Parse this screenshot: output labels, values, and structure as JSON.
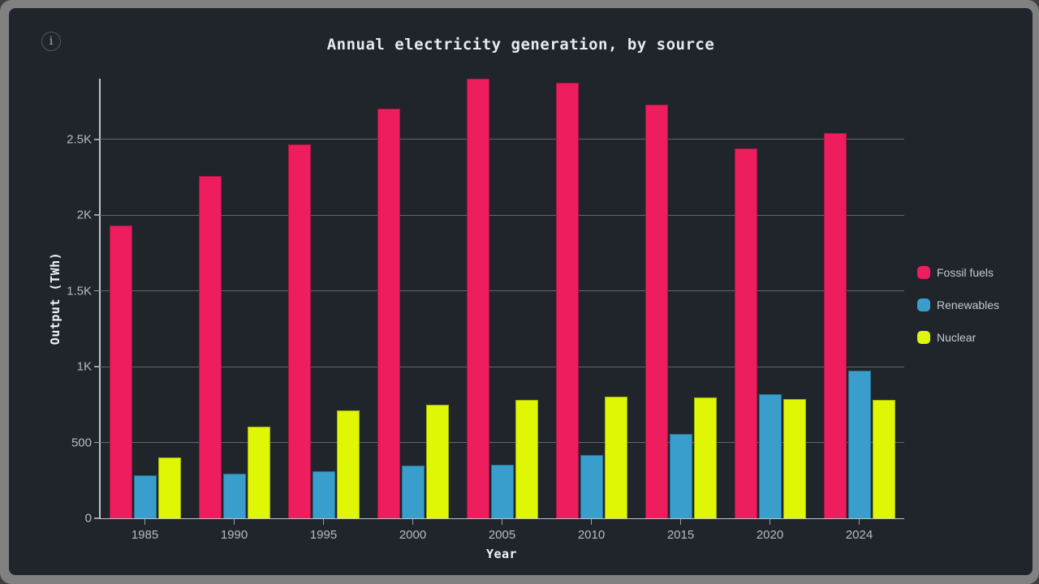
{
  "header": {
    "title": "Annual electricity generation, by source",
    "info_symbol": "i"
  },
  "chart_data": {
    "type": "bar",
    "title": "Annual electricity generation, by source",
    "xlabel": "Year",
    "ylabel": "Output (TWh)",
    "categories": [
      "1985",
      "1990",
      "1995",
      "2000",
      "2005",
      "2010",
      "2015",
      "2020",
      "2024"
    ],
    "series": [
      {
        "name": "Fossil fuels",
        "color": "#ee1e5e",
        "values": [
          1930,
          2260,
          2465,
          2700,
          2900,
          2875,
          2730,
          2440,
          2540
        ]
      },
      {
        "name": "Renewables",
        "color": "#3a9ecd",
        "values": [
          285,
          295,
          310,
          350,
          355,
          420,
          555,
          820,
          975
        ]
      },
      {
        "name": "Nuclear",
        "color": "#dff705",
        "values": [
          400,
          605,
          710,
          750,
          780,
          805,
          795,
          785,
          780
        ]
      }
    ],
    "ylim": [
      0,
      2900
    ],
    "yticks": [
      {
        "value": 0,
        "label": "0"
      },
      {
        "value": 500,
        "label": "500"
      },
      {
        "value": 1000,
        "label": "1K"
      },
      {
        "value": 1500,
        "label": "1.5K"
      },
      {
        "value": 2000,
        "label": "2K"
      },
      {
        "value": 2500,
        "label": "2.5K"
      }
    ],
    "grid": true,
    "legend_position": "right",
    "background_color": "#20242b",
    "frame_color": "#818181"
  }
}
